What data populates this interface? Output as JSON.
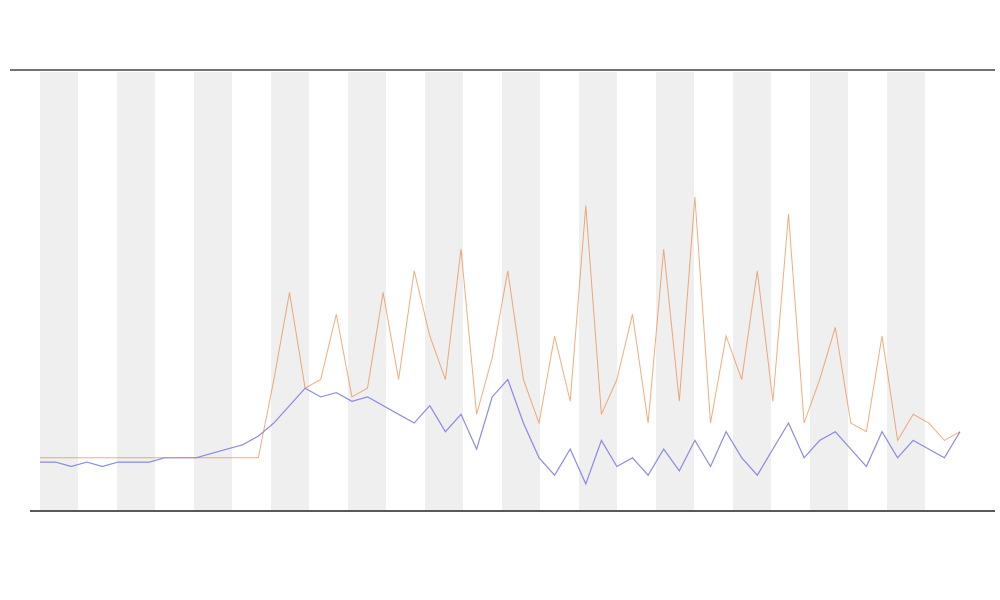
{
  "chart_data": {
    "type": "line",
    "ylim": [
      0,
      100
    ],
    "series": [
      {
        "color": "#6f6fe0",
        "values": [
          11,
          11,
          10,
          11,
          10,
          11,
          11,
          11,
          12,
          12,
          12,
          13,
          14,
          15,
          17,
          20,
          24,
          28,
          26,
          27,
          25,
          26,
          24,
          22,
          20,
          24,
          18,
          22,
          14,
          26,
          30,
          20,
          12,
          8,
          14,
          6,
          16,
          10,
          12,
          8,
          14,
          9,
          16,
          10,
          18,
          12,
          8,
          14,
          20,
          12,
          16,
          18,
          14,
          10,
          18,
          12,
          16,
          14,
          12,
          18
        ]
      },
      {
        "color": "#e8762a",
        "values": [
          12,
          12,
          12,
          12,
          12,
          12,
          12,
          12,
          12,
          12,
          12,
          12,
          12,
          12,
          12,
          30,
          50,
          28,
          30,
          45,
          26,
          28,
          50,
          30,
          55,
          40,
          30,
          60,
          22,
          35,
          55,
          30,
          20,
          40,
          25,
          70,
          22,
          30,
          45,
          20,
          60,
          25,
          72,
          20,
          40,
          30,
          55,
          25,
          68,
          20,
          30,
          42,
          20,
          18,
          40,
          16,
          22,
          20,
          16,
          18
        ]
      }
    ]
  }
}
